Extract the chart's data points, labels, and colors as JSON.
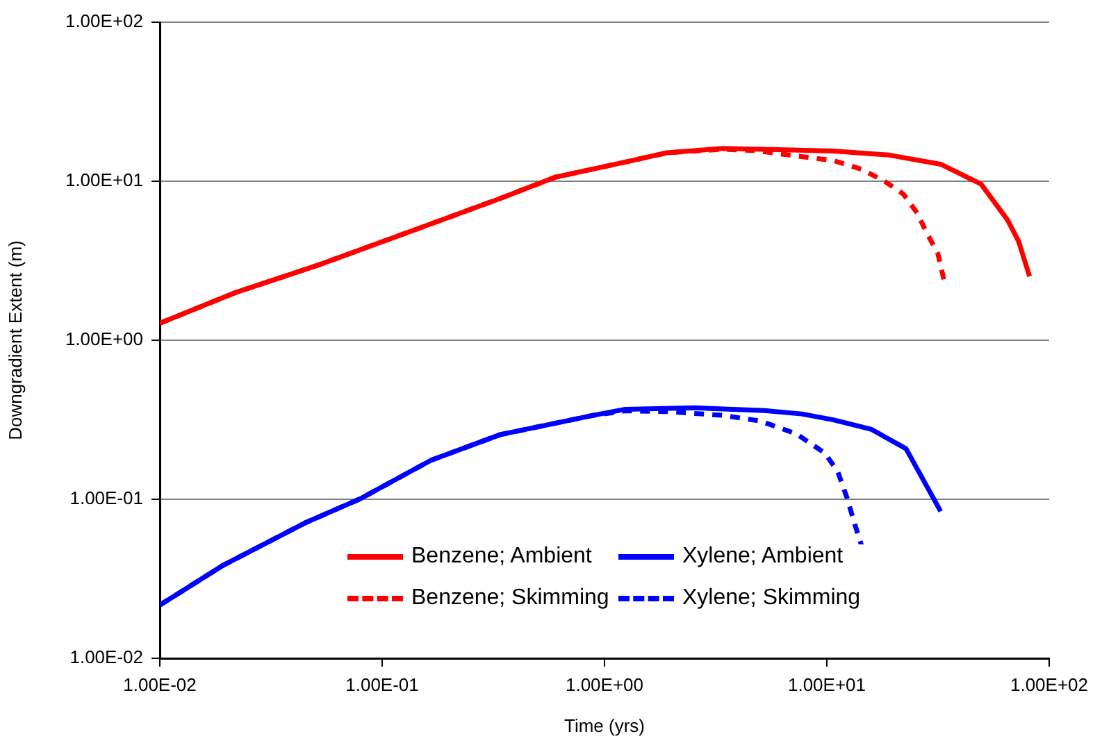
{
  "chart_data": {
    "type": "line",
    "xlabel": "Time (yrs)",
    "ylabel": "Downgradient Extent (m)",
    "log": "xy",
    "grid": "y",
    "legend": "bottom",
    "marker": "none",
    "xlim": [
      0.01,
      100
    ],
    "xticks": [
      {
        "value": 0.01,
        "label": "1.00E-02"
      },
      {
        "value": 0.1,
        "label": "1.00E-01"
      },
      {
        "value": 1,
        "label": "1.00E+00"
      },
      {
        "value": 10,
        "label": "1.00E+01"
      },
      {
        "value": 100,
        "label": "1.00E+02"
      }
    ],
    "ylim": [
      0.01,
      100
    ],
    "yticks": [
      {
        "value": 0.01,
        "label": "1.00E-02"
      },
      {
        "value": 0.1,
        "label": "1.00E-01"
      },
      {
        "value": 1,
        "label": "1.00E+00"
      },
      {
        "value": 10,
        "label": "1.00E+01"
      },
      {
        "value": 100,
        "label": "1.00E+02"
      }
    ],
    "series": [
      {
        "name": "Benzene; Ambient",
        "color": "#ff0000",
        "line_style": "solid",
        "x": [
          0.01,
          0.022,
          0.052,
          0.143,
          0.34,
          0.6,
          1.24,
          1.91,
          3.4,
          6.04,
          10.7,
          19.1,
          32.5,
          49.4,
          65,
          72.8,
          81.6
        ],
        "values": [
          1.28,
          2.0,
          2.98,
          5.0,
          7.8,
          10.6,
          13.2,
          15.1,
          16.1,
          15.8,
          15.5,
          14.6,
          12.8,
          9.6,
          5.7,
          4.2,
          2.52
        ]
      },
      {
        "name": "Xylene; Ambient",
        "color": "#0000ff",
        "line_style": "solid",
        "x": [
          0.01,
          0.019,
          0.045,
          0.08,
          0.166,
          0.34,
          0.89,
          1.24,
          2.55,
          5.24,
          7.72,
          10.7,
          15.8,
          22.7,
          32.5
        ],
        "values": [
          0.0216,
          0.038,
          0.071,
          0.101,
          0.176,
          0.255,
          0.337,
          0.368,
          0.376,
          0.361,
          0.344,
          0.316,
          0.276,
          0.208,
          0.084
        ]
      },
      {
        "name": "Benzene; Skimming",
        "color": "#ff0000",
        "line_style": "dashed",
        "x": [
          0.01,
          0.022,
          0.052,
          0.143,
          0.34,
          0.6,
          1.24,
          1.91,
          3.4,
          4.73,
          7.68,
          10.7,
          14.3,
          18.2,
          22.1,
          25.5,
          28,
          31.6,
          33.7
        ],
        "values": [
          1.28,
          2.0,
          2.98,
          5.0,
          7.8,
          10.6,
          13.2,
          15.1,
          15.9,
          15.6,
          14.3,
          13.5,
          11.9,
          10,
          8.3,
          6.3,
          4.8,
          3.5,
          2.36
        ]
      },
      {
        "name": "Xylene; Skimming",
        "color": "#0000ff",
        "line_style": "dashed",
        "x": [
          0.01,
          0.019,
          0.045,
          0.08,
          0.166,
          0.34,
          0.89,
          1.24,
          1.91,
          3.4,
          5.0,
          7.29,
          9.8,
          11.2,
          12.3,
          13.3,
          14.3
        ],
        "values": [
          0.0216,
          0.038,
          0.071,
          0.101,
          0.176,
          0.255,
          0.337,
          0.36,
          0.356,
          0.337,
          0.311,
          0.258,
          0.195,
          0.149,
          0.103,
          0.071,
          0.0516
        ]
      }
    ]
  }
}
